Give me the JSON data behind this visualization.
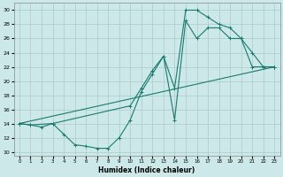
{
  "xlabel": "Humidex (Indice chaleur)",
  "xlim": [
    -0.5,
    23.5
  ],
  "ylim": [
    9.5,
    31
  ],
  "yticks": [
    10,
    12,
    14,
    16,
    18,
    20,
    22,
    24,
    26,
    28,
    30
  ],
  "xticks": [
    0,
    1,
    2,
    3,
    4,
    5,
    6,
    7,
    8,
    9,
    10,
    11,
    12,
    13,
    14,
    15,
    16,
    17,
    18,
    19,
    20,
    21,
    22,
    23
  ],
  "bg_color": "#cce8e8",
  "grid_color": "#aacccc",
  "line_color": "#1a7a6e",
  "line1_x": [
    0,
    1,
    2,
    3,
    4,
    5,
    6,
    7,
    8,
    9,
    10,
    11,
    12,
    13,
    14,
    15,
    16,
    17,
    18,
    19,
    20,
    21,
    22,
    23
  ],
  "line1_y": [
    14.0,
    13.8,
    13.5,
    14.0,
    12.5,
    11.0,
    10.8,
    10.5,
    10.5,
    12.0,
    14.5,
    18.5,
    21.0,
    23.5,
    19.0,
    30.0,
    30.0,
    29.0,
    28.0,
    27.5,
    26.0,
    24.0,
    22.0,
    22.0
  ],
  "line2_x": [
    0,
    1,
    3,
    10,
    11,
    12,
    13,
    14,
    15,
    16,
    17,
    18,
    19,
    20,
    21,
    22,
    23
  ],
  "line2_y": [
    14.0,
    13.8,
    14.0,
    16.5,
    19.0,
    21.5,
    23.5,
    14.5,
    28.5,
    26.0,
    27.5,
    27.5,
    26.0,
    26.0,
    22.0,
    22.0,
    22.0
  ],
  "line3_x": [
    0,
    23
  ],
  "line3_y": [
    14.0,
    22.0
  ]
}
